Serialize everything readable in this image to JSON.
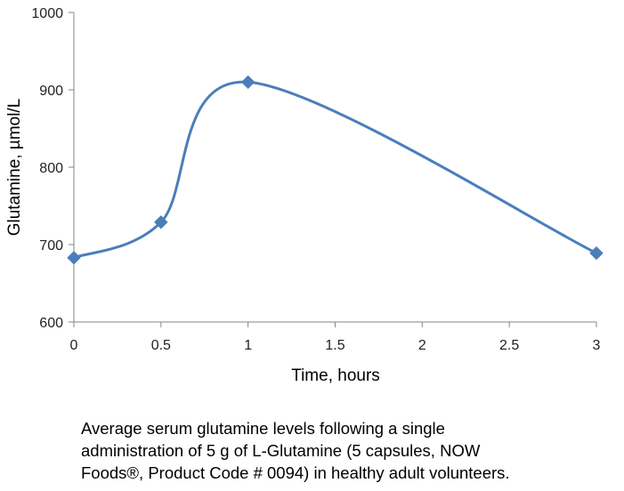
{
  "chart_data": {
    "type": "line",
    "smooth": true,
    "x": [
      0,
      0.5,
      1,
      3
    ],
    "series": [
      {
        "values": [
          683,
          729,
          910,
          689
        ],
        "color": "#4A7EBB",
        "marker": "diamond"
      }
    ],
    "xlabel": "Time, hours",
    "ylabel": "Glutamine, µmol/L",
    "xlim": [
      0,
      3
    ],
    "ylim": [
      600,
      1000
    ],
    "xticks": [
      0,
      0.5,
      1,
      1.5,
      2,
      2.5,
      3
    ],
    "xtick_labels": [
      "0",
      "0.5",
      "1",
      "1.5",
      "2",
      "2.5",
      "3"
    ],
    "yticks": [
      600,
      700,
      800,
      900,
      1000
    ],
    "ytick_labels": [
      "600",
      "700",
      "800",
      "900",
      "1000"
    ],
    "grid": false,
    "axis_color": "#868686"
  },
  "caption": {
    "lines": [
      "Average serum glutamine levels following a single",
      "administration of 5 g of L-Glutamine (5 capsules, NOW",
      "Foods®, Product Code # 0094) in healthy adult volunteers."
    ]
  }
}
